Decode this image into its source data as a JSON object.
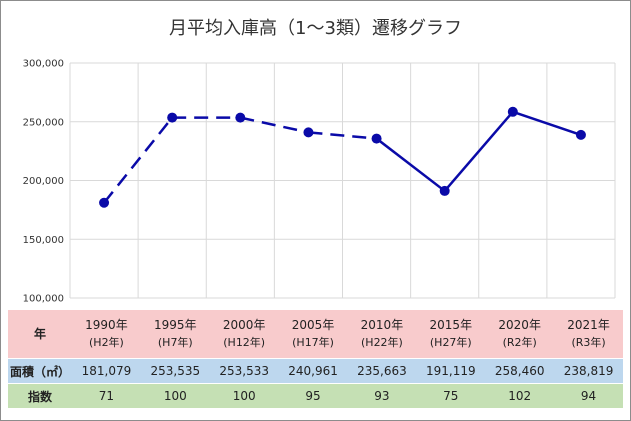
{
  "chart_data": {
    "type": "line",
    "title": "月平均入庫高（1～3類）遷移グラフ",
    "categories": [
      "1990年",
      "1995年",
      "2000年",
      "2005年",
      "2010年",
      "2015年",
      "2020年",
      "2021年"
    ],
    "series": [
      {
        "values": [
          181079,
          253535,
          253533,
          240961,
          235663,
          191119,
          258460,
          238819
        ],
        "color": "#0a0aa8"
      }
    ],
    "dashed_until_index": 4,
    "ylim": [
      100000,
      300000
    ],
    "yticks": [
      "100,000",
      "150,000",
      "200,000",
      "250,000",
      "300,000"
    ],
    "ytick_values": [
      100000,
      150000,
      200000,
      250000,
      300000
    ],
    "grid": true
  },
  "table": {
    "year_header": "年",
    "area_header": "面積（㎡）",
    "index_header": "指数",
    "years": [
      "1990年",
      "1995年",
      "2000年",
      "2005年",
      "2010年",
      "2015年",
      "2020年",
      "2021年"
    ],
    "eras": [
      "(H2年)",
      "(H7年)",
      "(H12年)",
      "(H17年)",
      "(H22年)",
      "(H27年)",
      "(R2年)",
      "(R3年)"
    ],
    "areas": [
      "181,079",
      "253,535",
      "253,533",
      "240,961",
      "235,663",
      "191,119",
      "258,460",
      "238,819"
    ],
    "indexes": [
      "71",
      "100",
      "100",
      "95",
      "93",
      "75",
      "102",
      "94"
    ]
  },
  "colors": {
    "year_row": "#f8cbcc",
    "area_row": "#bdd7ee",
    "index_row": "#c5e0b4",
    "line": "#0a0aa8"
  }
}
